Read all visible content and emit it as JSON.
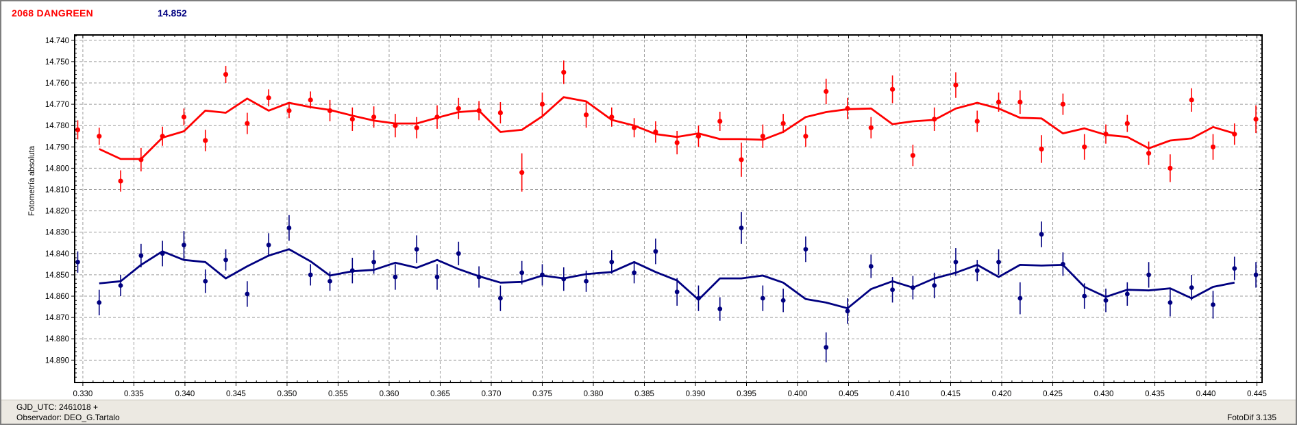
{
  "header": {
    "target_name": "2068 DANGREEN",
    "mean_value": "14.852"
  },
  "status_bar": {
    "gjd": "GJD_UTC: 2461018 +",
    "observer": "Observador: DEO_G.Tartalo",
    "app_version": "FotoDif 3.135"
  },
  "colors": {
    "target": "#ff0000",
    "comparison": "#000080",
    "grid": "#9c9c9c",
    "axis": "#000000",
    "status_bg": "#ece9e2",
    "window_border": "#7e7e7e"
  },
  "chart_data": {
    "type": "scatter",
    "title": "",
    "xlabel": "",
    "ylabel": "Fotometría absoluta",
    "grid": true,
    "legend": "none",
    "y_axis_direction": "magnitudes-increase-downward",
    "smoothing": "moving_average_3",
    "x_axis": {
      "min": 0.3292,
      "max": 0.4455,
      "tick_start": 0.33,
      "tick_end": 0.445,
      "tick_step": 0.005,
      "minor_step": 0.001,
      "decimals": 3
    },
    "y_axis": {
      "min": 14.7375,
      "max": 14.9005,
      "tick_start": 14.74,
      "tick_end": 14.89,
      "tick_step": 0.01,
      "minor_step": 0.002,
      "decimals": 3
    },
    "series": [
      {
        "name": "2068 DANGREEN (target)",
        "color": "#ff0000",
        "marker_radius": 3.6,
        "points": [
          [
            0.3295,
            14.782,
            0.0045
          ],
          [
            0.3316,
            14.785,
            0.004
          ],
          [
            0.3337,
            14.806,
            0.005
          ],
          [
            0.3357,
            14.796,
            0.0055
          ],
          [
            0.3378,
            14.785,
            0.0045
          ],
          [
            0.3399,
            14.776,
            0.004
          ],
          [
            0.342,
            14.787,
            0.005
          ],
          [
            0.344,
            14.756,
            0.004
          ],
          [
            0.3461,
            14.779,
            0.005
          ],
          [
            0.3482,
            14.767,
            0.004
          ],
          [
            0.3502,
            14.773,
            0.0035
          ],
          [
            0.3523,
            14.768,
            0.004
          ],
          [
            0.3542,
            14.773,
            0.005
          ],
          [
            0.3564,
            14.777,
            0.0055
          ],
          [
            0.3585,
            14.776,
            0.005
          ],
          [
            0.3606,
            14.78,
            0.0055
          ],
          [
            0.3627,
            14.781,
            0.005
          ],
          [
            0.3647,
            14.776,
            0.0055
          ],
          [
            0.3668,
            14.772,
            0.005
          ],
          [
            0.3688,
            14.773,
            0.0045
          ],
          [
            0.3709,
            14.774,
            0.005
          ],
          [
            0.373,
            14.802,
            0.009
          ],
          [
            0.375,
            14.77,
            0.0055
          ],
          [
            0.3771,
            14.755,
            0.0055
          ],
          [
            0.3793,
            14.775,
            0.006
          ],
          [
            0.3818,
            14.776,
            0.0045
          ],
          [
            0.384,
            14.781,
            0.0045
          ],
          [
            0.3861,
            14.783,
            0.005
          ],
          [
            0.3882,
            14.788,
            0.0055
          ],
          [
            0.3903,
            14.785,
            0.005
          ],
          [
            0.3924,
            14.778,
            0.0045
          ],
          [
            0.3945,
            14.796,
            0.008
          ],
          [
            0.3966,
            14.785,
            0.0055
          ],
          [
            0.3986,
            14.779,
            0.0045
          ],
          [
            0.4008,
            14.785,
            0.005
          ],
          [
            0.4028,
            14.764,
            0.006
          ],
          [
            0.4049,
            14.772,
            0.005
          ],
          [
            0.4072,
            14.781,
            0.005
          ],
          [
            0.4093,
            14.763,
            0.0065
          ],
          [
            0.4113,
            14.794,
            0.005
          ],
          [
            0.4134,
            14.777,
            0.0055
          ],
          [
            0.4155,
            14.761,
            0.006
          ],
          [
            0.4176,
            14.778,
            0.005
          ],
          [
            0.4197,
            14.769,
            0.0045
          ],
          [
            0.4218,
            14.769,
            0.0055
          ],
          [
            0.4239,
            14.791,
            0.0065
          ],
          [
            0.426,
            14.77,
            0.005
          ],
          [
            0.4281,
            14.79,
            0.006
          ],
          [
            0.4302,
            14.784,
            0.0045
          ],
          [
            0.4323,
            14.779,
            0.004
          ],
          [
            0.4344,
            14.793,
            0.0055
          ],
          [
            0.4365,
            14.8,
            0.0065
          ],
          [
            0.4386,
            14.768,
            0.0055
          ],
          [
            0.4407,
            14.79,
            0.006
          ],
          [
            0.4428,
            14.784,
            0.005
          ],
          [
            0.4449,
            14.777,
            0.0065
          ]
        ]
      },
      {
        "name": "comparison 14.852",
        "color": "#000080",
        "marker_radius": 3.4,
        "points": [
          [
            0.3295,
            14.844,
            0.005
          ],
          [
            0.3316,
            14.863,
            0.006
          ],
          [
            0.3337,
            14.855,
            0.005
          ],
          [
            0.3357,
            14.841,
            0.0055
          ],
          [
            0.3378,
            14.84,
            0.006
          ],
          [
            0.3399,
            14.836,
            0.0065
          ],
          [
            0.342,
            14.853,
            0.0055
          ],
          [
            0.344,
            14.843,
            0.005
          ],
          [
            0.3461,
            14.859,
            0.006
          ],
          [
            0.3482,
            14.836,
            0.0055
          ],
          [
            0.3502,
            14.828,
            0.006
          ],
          [
            0.3523,
            14.85,
            0.005
          ],
          [
            0.3542,
            14.853,
            0.0045
          ],
          [
            0.3564,
            14.848,
            0.006
          ],
          [
            0.3585,
            14.844,
            0.0055
          ],
          [
            0.3606,
            14.851,
            0.006
          ],
          [
            0.3627,
            14.838,
            0.0065
          ],
          [
            0.3647,
            14.851,
            0.006
          ],
          [
            0.3668,
            14.84,
            0.0055
          ],
          [
            0.3688,
            14.851,
            0.005
          ],
          [
            0.3709,
            14.861,
            0.006
          ],
          [
            0.373,
            14.849,
            0.0055
          ],
          [
            0.375,
            14.85,
            0.005
          ],
          [
            0.3771,
            14.852,
            0.0055
          ],
          [
            0.3793,
            14.853,
            0.005
          ],
          [
            0.3818,
            14.844,
            0.0055
          ],
          [
            0.384,
            14.849,
            0.005
          ],
          [
            0.3861,
            14.839,
            0.006
          ],
          [
            0.3882,
            14.858,
            0.0065
          ],
          [
            0.3903,
            14.861,
            0.006
          ],
          [
            0.3924,
            14.866,
            0.0055
          ],
          [
            0.3945,
            14.828,
            0.0075
          ],
          [
            0.3966,
            14.861,
            0.006
          ],
          [
            0.3986,
            14.862,
            0.0055
          ],
          [
            0.4008,
            14.838,
            0.006
          ],
          [
            0.4028,
            14.884,
            0.007
          ],
          [
            0.4049,
            14.867,
            0.006
          ],
          [
            0.4072,
            14.846,
            0.0055
          ],
          [
            0.4093,
            14.857,
            0.006
          ],
          [
            0.4113,
            14.856,
            0.0055
          ],
          [
            0.4134,
            14.855,
            0.006
          ],
          [
            0.4155,
            14.844,
            0.0065
          ],
          [
            0.4176,
            14.848,
            0.005
          ],
          [
            0.4197,
            14.844,
            0.006
          ],
          [
            0.4218,
            14.861,
            0.0075
          ],
          [
            0.4239,
            14.831,
            0.006
          ],
          [
            0.426,
            14.845,
            0.0055
          ],
          [
            0.4281,
            14.86,
            0.006
          ],
          [
            0.4302,
            14.862,
            0.0055
          ],
          [
            0.4323,
            14.859,
            0.0055
          ],
          [
            0.4344,
            14.85,
            0.006
          ],
          [
            0.4365,
            14.863,
            0.0065
          ],
          [
            0.4386,
            14.856,
            0.006
          ],
          [
            0.4407,
            14.864,
            0.0065
          ],
          [
            0.4428,
            14.847,
            0.0055
          ],
          [
            0.4449,
            14.85,
            0.006
          ]
        ]
      }
    ]
  }
}
